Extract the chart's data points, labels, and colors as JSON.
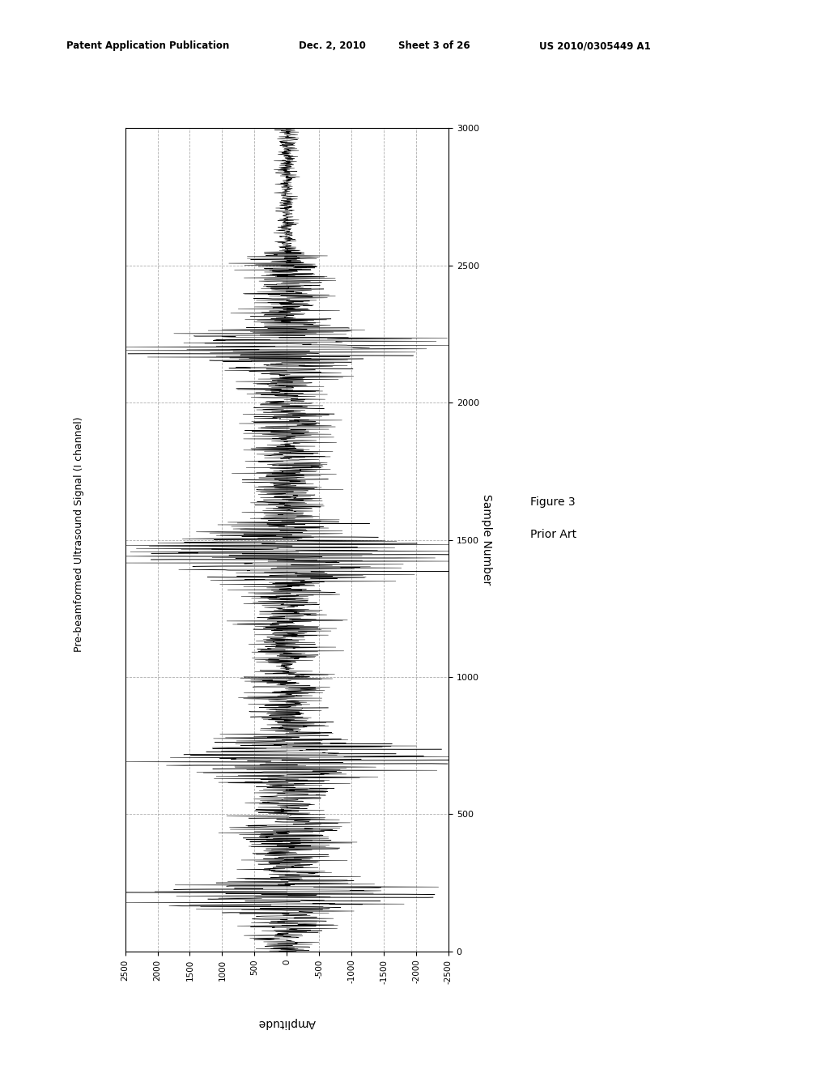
{
  "title_header": "Patent Application Publication",
  "date_header": "Dec. 2, 2010",
  "sheet_header": "Sheet 3 of 26",
  "patent_header": "US 2010/0305449 A1",
  "figure_label": "Figure 3",
  "figure_sublabel": "Prior Art",
  "sample_axis_label": "Sample Number",
  "amplitude_axis_label": "Amplitude",
  "ylabel_rotated": "Pre-beamformed Ultrasound Signal (I channel)",
  "sample_lim": [
    0,
    3000
  ],
  "amplitude_lim": [
    -2500,
    2500
  ],
  "sample_ticks": [
    0,
    500,
    1000,
    1500,
    2000,
    2500,
    3000
  ],
  "amplitude_ticks": [
    2500,
    2000,
    1500,
    1000,
    500,
    0,
    -500,
    -1000,
    -1500,
    -2000,
    -2500
  ],
  "background_color": "#ffffff",
  "signal_color": "#000000",
  "grid_color": "#999999",
  "num_samples": 3000,
  "burst_centers": [
    200,
    700,
    1450,
    2200
  ],
  "burst_halfwidths": [
    120,
    130,
    160,
    140
  ],
  "burst_max_amplitudes": [
    2100,
    2200,
    2300,
    2200
  ],
  "noise_floor": 80,
  "carrier_freq": 0.08,
  "seed": 12345
}
